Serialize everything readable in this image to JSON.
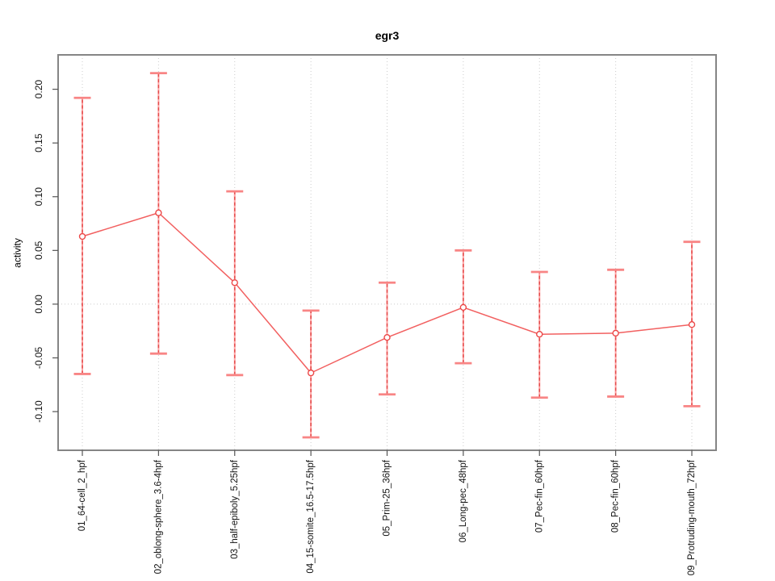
{
  "chart_data": {
    "type": "line",
    "title": "egr3",
    "ylabel": "activity",
    "xlabel": "",
    "legend": "none",
    "categories": [
      "01_64-cell_2_hpf",
      "02_oblong-sphere_3.6-4hpf",
      "03_half-epiboly_5.25hpf",
      "04_15-somite_16.5-17.5hpf",
      "05_Prim-25_36hpf",
      "06_Long-pec_48hpf",
      "07_Pec-fin_60hpf",
      "08_Pec-fin_60hpf",
      "09_Protruding-mouth_72hpf"
    ],
    "series": [
      {
        "name": "egr3 activity",
        "values": [
          0.063,
          0.085,
          0.02,
          -0.064,
          -0.031,
          -0.003,
          -0.028,
          -0.027,
          -0.019
        ],
        "error_lower": [
          -0.065,
          -0.046,
          -0.066,
          -0.124,
          -0.084,
          -0.055,
          -0.087,
          -0.086,
          -0.095
        ],
        "error_upper": [
          0.192,
          0.215,
          0.105,
          -0.006,
          0.02,
          0.05,
          0.03,
          0.032,
          0.058
        ]
      }
    ],
    "yticks": [
      -0.1,
      -0.05,
      0.0,
      0.05,
      0.1,
      0.15,
      0.2
    ],
    "ytick_labels": [
      "-0.10",
      "-0.05",
      "0.00",
      "0.05",
      "0.10",
      "0.15",
      "0.20"
    ],
    "ylim": [
      -0.136,
      0.232
    ],
    "grid": {
      "vertical_gridlines": true,
      "horizontal_zero_line": true,
      "style": "dotted"
    },
    "colors": {
      "error_bar_base": "#ffa3a3",
      "error_bar_dash": "#e34c4c",
      "error_cap": "#f88585",
      "line": "#f26060",
      "marker_stroke": "#ec4747",
      "marker_fill": "#ffffff",
      "grid": "#cccccc",
      "box": "#858585",
      "tick": "#555555",
      "tick_label": "#111111"
    }
  }
}
